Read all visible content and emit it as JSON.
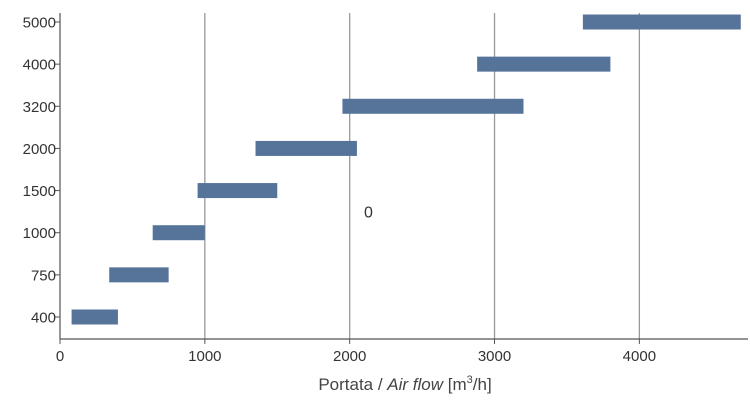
{
  "chart_data": {
    "type": "bar",
    "orientation": "horizontal-range",
    "categories": [
      "400",
      "750",
      "1000",
      "1500",
      "2000",
      "3200",
      "4000",
      "5000"
    ],
    "ranges": [
      {
        "category": "400",
        "start": 80,
        "end": 400
      },
      {
        "category": "750",
        "start": 340,
        "end": 750
      },
      {
        "category": "1000",
        "start": 640,
        "end": 1000
      },
      {
        "category": "1500",
        "start": 950,
        "end": 1500
      },
      {
        "category": "2000",
        "start": 1350,
        "end": 2050
      },
      {
        "category": "3200",
        "start": 1950,
        "end": 3200
      },
      {
        "category": "4000",
        "start": 2880,
        "end": 3800
      },
      {
        "category": "5000",
        "start": 3610,
        "end": 4700
      }
    ],
    "x_ticks": [
      "0",
      "1000",
      "2000",
      "3000",
      "4000"
    ],
    "x_tick_values": [
      0,
      1000,
      2000,
      3000,
      4000
    ],
    "xlim": [
      0,
      4750
    ],
    "xlabel": {
      "prefix": "Portata / ",
      "italic": "Air flow",
      "suffix": " [m",
      "sup": "3",
      "end": "/h]"
    },
    "annotation": {
      "text": "0",
      "x": 2130,
      "between": [
        "1500",
        "1000"
      ]
    },
    "grid": "vertical",
    "colors": {
      "bar": "#56739a",
      "grid": "#999999",
      "axis": "#555555"
    }
  }
}
